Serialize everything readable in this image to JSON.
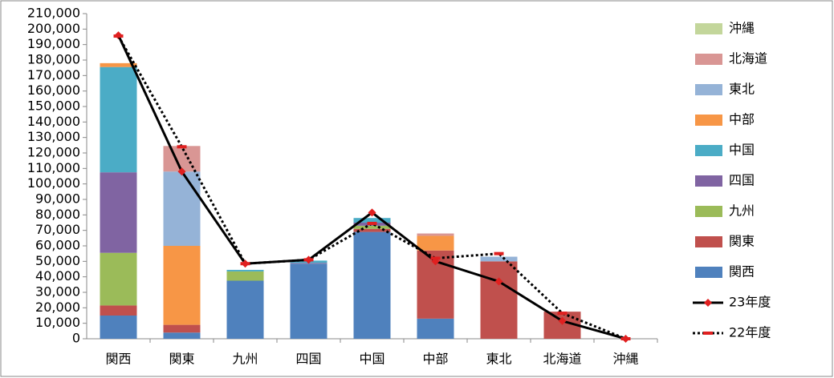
{
  "chart_data": {
    "type": "bar",
    "stacked": true,
    "grid": false,
    "legend": "right",
    "categories": [
      "関西",
      "関東",
      "九州",
      "四国",
      "中国",
      "中部",
      "東北",
      "北海道",
      "沖縄"
    ],
    "ylim": [
      0,
      210000
    ],
    "yticks": [
      {
        "value": 0,
        "label": "0"
      },
      {
        "value": 10000,
        "label": "10,000"
      },
      {
        "value": 20000,
        "label": "20,000"
      },
      {
        "value": 30000,
        "label": "30,000"
      },
      {
        "value": 40000,
        "label": "40,000"
      },
      {
        "value": 50000,
        "label": "50,000"
      },
      {
        "value": 60000,
        "label": "60,000"
      },
      {
        "value": 70000,
        "label": "70,000"
      },
      {
        "value": 80000,
        "label": "80,000"
      },
      {
        "value": 90000,
        "label": "90,000"
      },
      {
        "value": 100000,
        "label": "100,000"
      },
      {
        "value": 110000,
        "label": "110,000"
      },
      {
        "value": 120000,
        "label": "120,000"
      },
      {
        "value": 130000,
        "label": "130,000"
      },
      {
        "value": 140000,
        "label": "140,000"
      },
      {
        "value": 150000,
        "label": "150,000"
      },
      {
        "value": 160000,
        "label": "160,000"
      },
      {
        "value": 170000,
        "label": "170,000"
      },
      {
        "value": 180000,
        "label": "180,000"
      },
      {
        "value": 190000,
        "label": "190,000"
      },
      {
        "value": 200000,
        "label": "200,000"
      },
      {
        "value": 210000,
        "label": "210,000"
      }
    ],
    "series": [
      {
        "name": "関西",
        "color": "#4f81bd",
        "values": [
          15000,
          4000,
          37500,
          48500,
          69000,
          13000,
          0,
          0,
          0
        ]
      },
      {
        "name": "関東",
        "color": "#c0504d",
        "values": [
          6500,
          5000,
          0,
          0,
          2000,
          44000,
          50000,
          17500,
          0
        ]
      },
      {
        "name": "九州",
        "color": "#9bbb59",
        "values": [
          34000,
          0,
          6000,
          0,
          2000,
          0,
          0,
          0,
          0
        ]
      },
      {
        "name": "四国",
        "color": "#8064a2",
        "values": [
          52000,
          0,
          0,
          500,
          2000,
          0,
          0,
          0,
          0
        ]
      },
      {
        "name": "中国",
        "color": "#4bacc6",
        "values": [
          68000,
          0,
          1000,
          1500,
          3000,
          0,
          0,
          0,
          0
        ]
      },
      {
        "name": "中部",
        "color": "#f79646",
        "values": [
          2500,
          51000,
          0,
          0,
          0,
          9500,
          0,
          0,
          0
        ]
      },
      {
        "name": "東北",
        "color": "#95b3d7",
        "values": [
          0,
          48000,
          0,
          0,
          0,
          0,
          3000,
          0,
          0
        ]
      },
      {
        "name": "北海道",
        "color": "#d99694",
        "values": [
          0,
          16500,
          0,
          0,
          0,
          1500,
          0,
          0,
          0
        ]
      },
      {
        "name": "沖縄",
        "color": "#c3d69b",
        "values": [
          0,
          0,
          0,
          0,
          0,
          0,
          0,
          0,
          0
        ]
      },
      {
        "name": "23年度",
        "type": "line",
        "color": "#000000",
        "style": "solid",
        "marker_color": "#e02020",
        "values": [
          196000,
          108000,
          48500,
          51000,
          81500,
          50000,
          37000,
          11500,
          0
        ]
      },
      {
        "name": "22年度",
        "type": "line",
        "color": "#000000",
        "style": "dotted",
        "marker_color": "#e02020",
        "values": [
          195500,
          124000,
          48500,
          51000,
          74500,
          52000,
          55000,
          16500,
          0
        ]
      }
    ]
  }
}
